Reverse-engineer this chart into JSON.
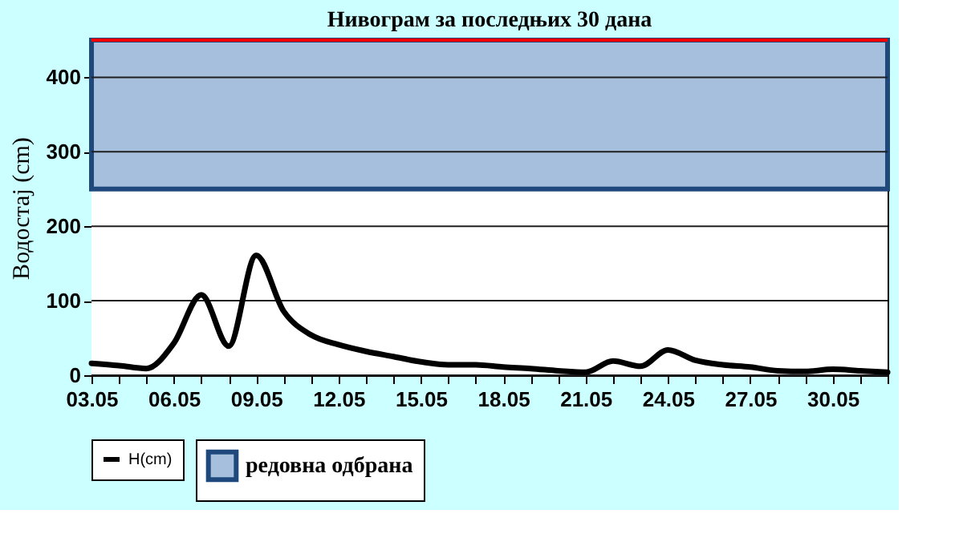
{
  "chart_data": {
    "type": "line",
    "title": "Нивограм за последњих 30 дана",
    "ylabel": "Водостај (cm)",
    "categories": [
      "03.05",
      null,
      null,
      "06.05",
      null,
      null,
      "09.05",
      null,
      null,
      "12.05",
      null,
      null,
      "15.05",
      null,
      null,
      "18.05",
      null,
      null,
      "21.05",
      null,
      null,
      "24.05",
      null,
      null,
      "27.05",
      null,
      null,
      "30.05",
      null,
      null
    ],
    "series": [
      {
        "name": "H(cm)",
        "color": "#000000",
        "values": [
          16,
          13,
          9,
          43,
          108,
          39,
          161,
          86,
          54,
          41,
          32,
          25,
          18,
          14,
          14,
          11,
          9,
          6,
          4,
          19,
          12,
          34,
          20,
          14,
          11,
          6,
          5,
          8,
          6,
          4
        ]
      }
    ],
    "ylim": [
      0,
      450
    ],
    "yticks": [
      0,
      100,
      200,
      300,
      400
    ],
    "grid": "y",
    "legend": "bottom",
    "line_style": "solid",
    "marker": "none",
    "bands": [
      {
        "axis": "y",
        "from": 0,
        "to": 250,
        "color": "#ffffff"
      },
      {
        "axis": "y",
        "from": 250,
        "to": 450,
        "label": "редовна одбрана",
        "color": "#a6bfdc"
      }
    ],
    "ref_lines": [
      {
        "axis": "y",
        "value": 450,
        "color": "#ff0000"
      }
    ]
  }
}
